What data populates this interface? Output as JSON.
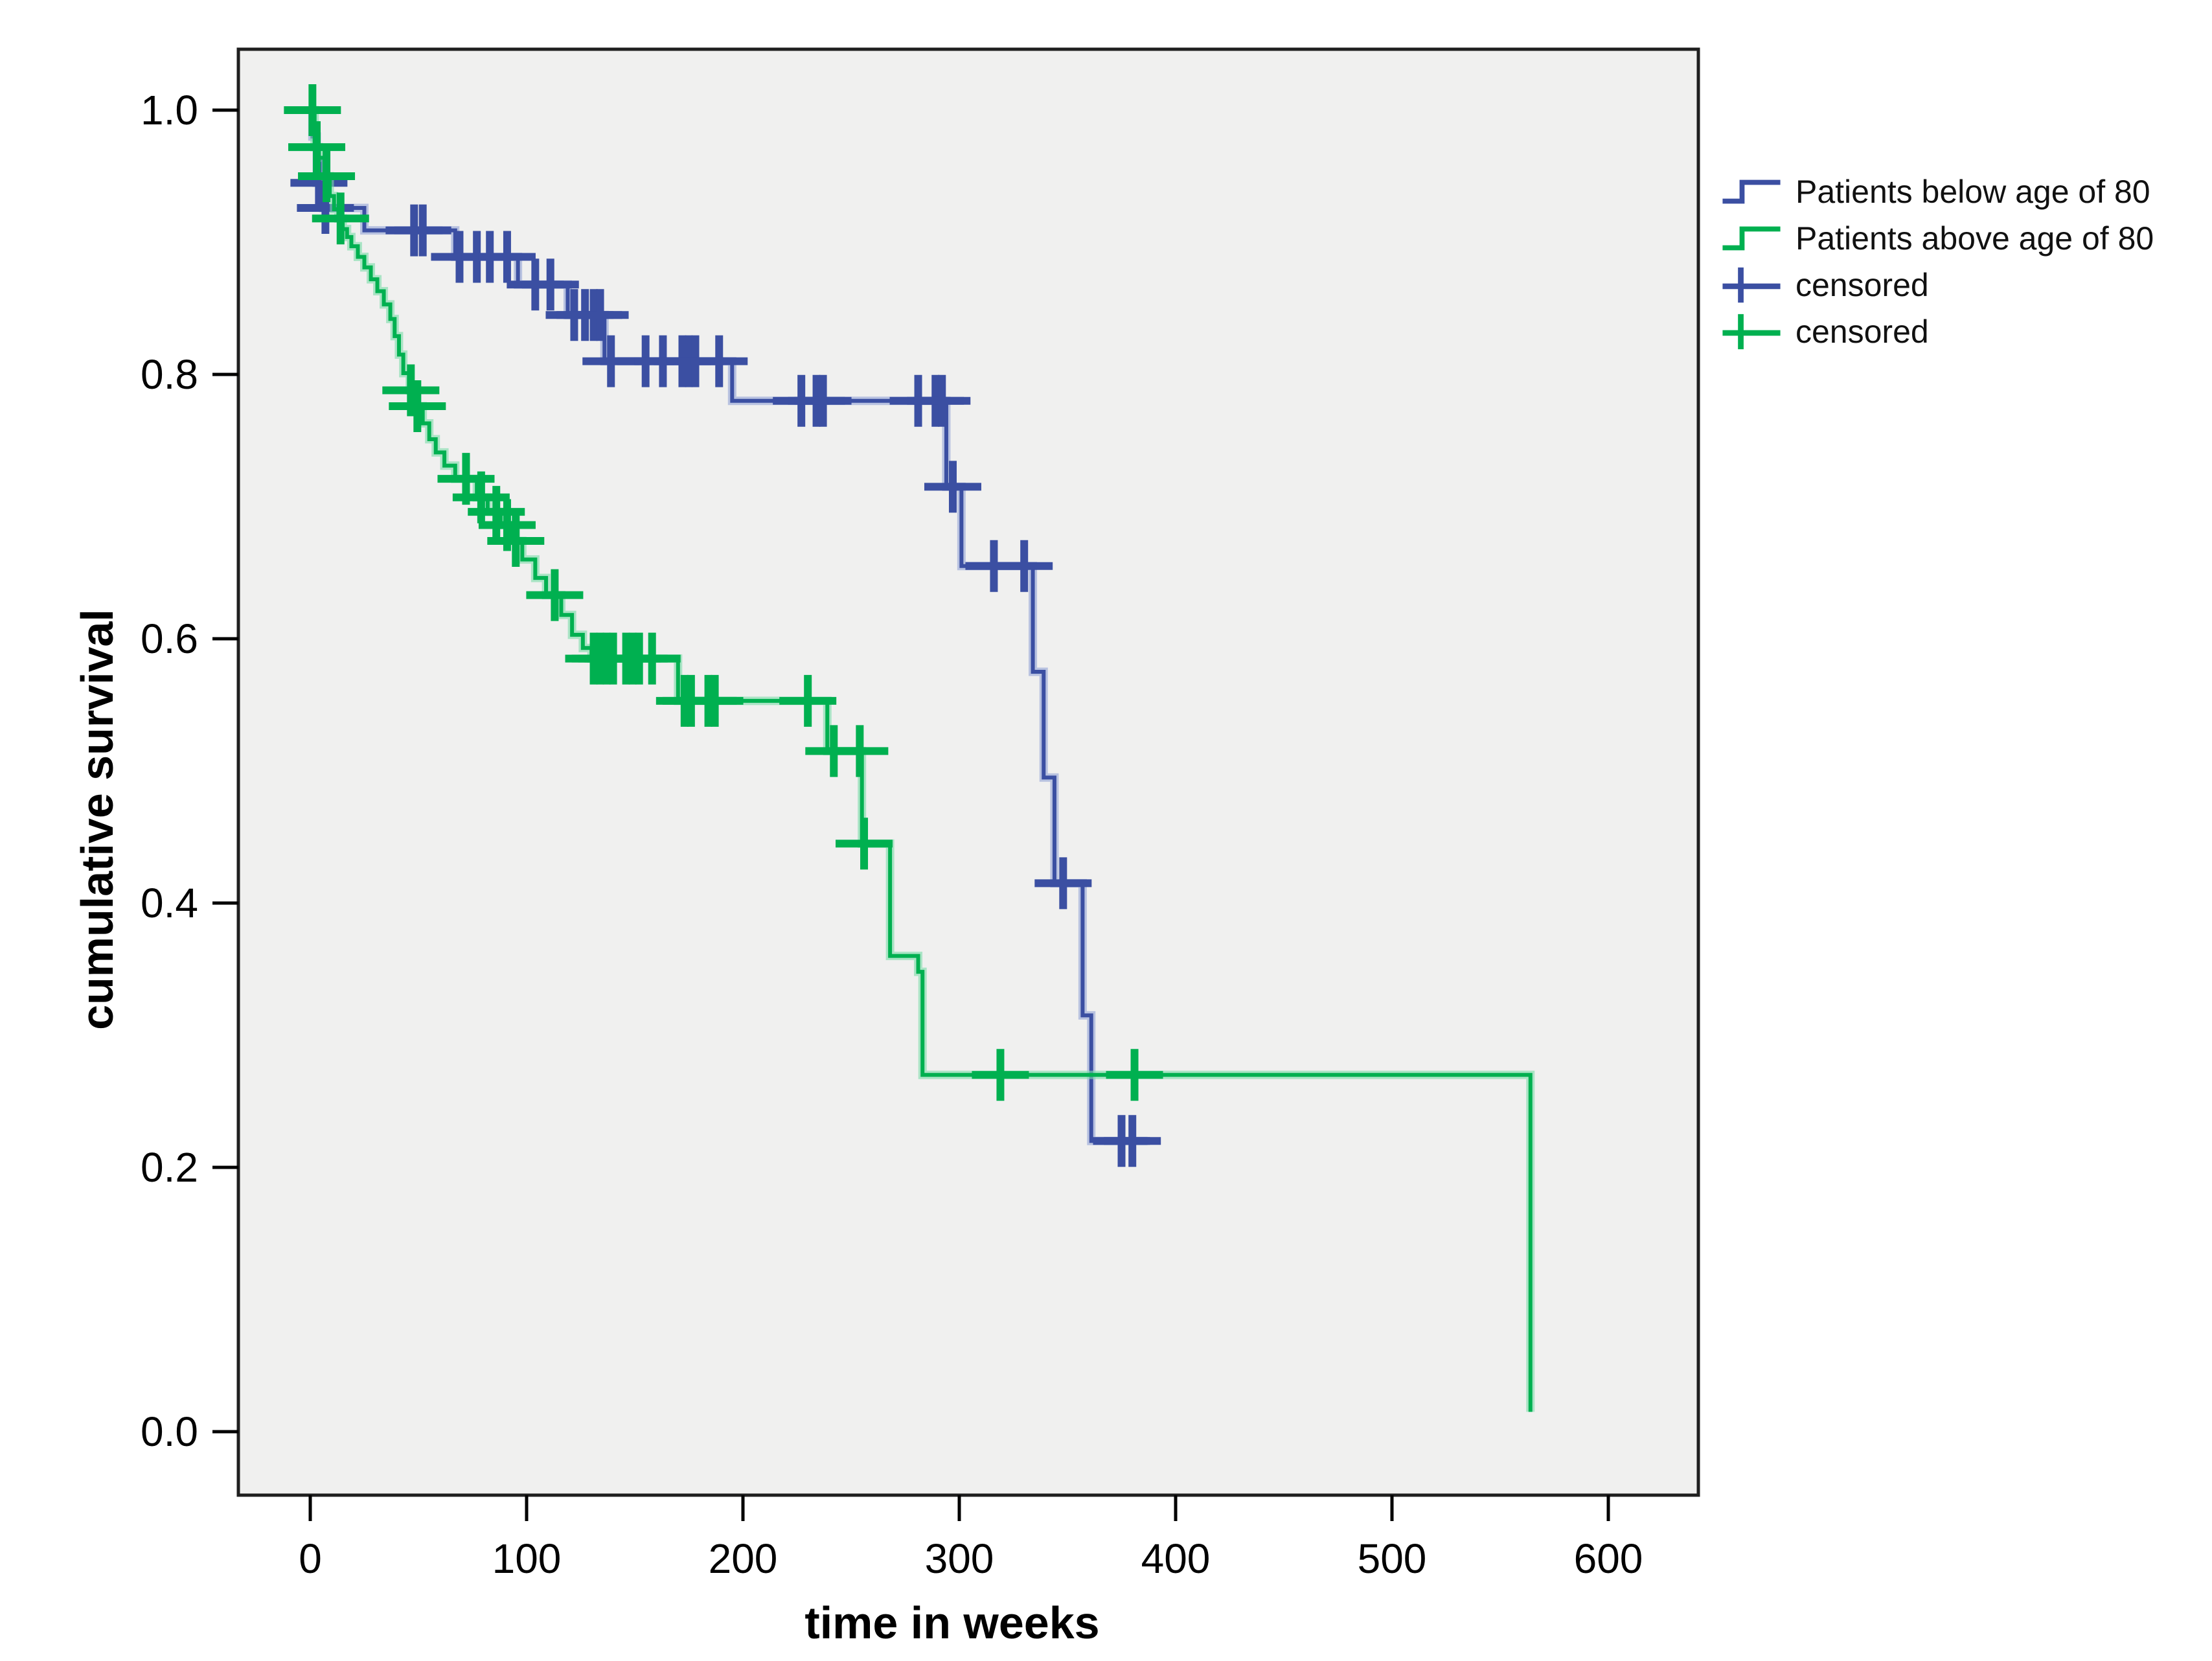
{
  "figure": {
    "y_axis": {
      "title": "cumulative survival",
      "tick_labels": [
        "1.0",
        "0.8",
        "0.6",
        "0.4",
        "0.2",
        "0.0"
      ],
      "tick_values": [
        1.0,
        0.8,
        0.6,
        0.4,
        0.2,
        0.0
      ]
    },
    "x_axis": {
      "title": "time in weeks",
      "tick_labels": [
        "0",
        "100",
        "200",
        "300",
        "400",
        "500",
        "600"
      ],
      "tick_values": [
        0,
        100,
        200,
        300,
        400,
        500,
        600
      ]
    },
    "legend": {
      "items": [
        {
          "label": "Patients below age of 80",
          "glyph": "step-line-icon",
          "color": "#3B4FA2"
        },
        {
          "label": "Patients above age of 80",
          "glyph": "step-line-icon",
          "color": "#00B050"
        },
        {
          "label": "censored",
          "glyph": "censor-plus-icon",
          "color": "#3B4FA2"
        },
        {
          "label": "censored",
          "glyph": "censor-plus-icon",
          "color": "#00B050"
        }
      ]
    },
    "colors": {
      "plot_background": "#F0F0EF",
      "frame": "#1F1F1F",
      "text": "#000000",
      "blue_series": "#3B4FA2",
      "blue_halo": "#93A4D6",
      "green_series": "#00B050",
      "green_halo": "#7CDCA8"
    }
  },
  "chart_data": {
    "type": "line",
    "subtype": "kaplan_meier_step_survival",
    "title": "",
    "xlabel": "time in weeks",
    "ylabel": "cumulative survival",
    "xlim": [
      0,
      600
    ],
    "ylim": [
      0.0,
      1.0
    ],
    "grid": false,
    "legend_position": "right-top",
    "series": [
      {
        "name": "Patients below age of 80",
        "color": "#3B4FA2",
        "halo": "#93A4D6",
        "steps": [
          [
            0,
            1.0
          ],
          [
            1,
            0.98
          ],
          [
            3,
            0.945
          ],
          [
            6,
            0.926
          ],
          [
            25,
            0.909
          ],
          [
            67,
            0.889
          ],
          [
            96,
            0.868
          ],
          [
            119,
            0.845
          ],
          [
            136,
            0.81
          ],
          [
            195,
            0.78
          ],
          [
            294,
            0.715
          ],
          [
            301,
            0.655
          ],
          [
            334,
            0.575
          ],
          [
            339,
            0.495
          ],
          [
            344,
            0.415
          ],
          [
            357,
            0.315
          ],
          [
            361,
            0.22
          ]
        ],
        "end": 387,
        "censored": [
          [
            4,
            0.945
          ],
          [
            7,
            0.926
          ],
          [
            48,
            0.909
          ],
          [
            52,
            0.909
          ],
          [
            69,
            0.889
          ],
          [
            77,
            0.889
          ],
          [
            83,
            0.889
          ],
          [
            91,
            0.889
          ],
          [
            104,
            0.868
          ],
          [
            111,
            0.868
          ],
          [
            122,
            0.845
          ],
          [
            127,
            0.845
          ],
          [
            131,
            0.845
          ],
          [
            134,
            0.845
          ],
          [
            139,
            0.81
          ],
          [
            155,
            0.81
          ],
          [
            163,
            0.81
          ],
          [
            172,
            0.81
          ],
          [
            175,
            0.81
          ],
          [
            178,
            0.81
          ],
          [
            189,
            0.81
          ],
          [
            227,
            0.78
          ],
          [
            234,
            0.78
          ],
          [
            237,
            0.78
          ],
          [
            281,
            0.78
          ],
          [
            289,
            0.78
          ],
          [
            292,
            0.78
          ],
          [
            297,
            0.715
          ],
          [
            316,
            0.655
          ],
          [
            330,
            0.655
          ],
          [
            348,
            0.415
          ],
          [
            375,
            0.22
          ],
          [
            380,
            0.22
          ]
        ]
      },
      {
        "name": "Patients above age of 80",
        "color": "#00B050",
        "halo": "#7CDCA8",
        "steps": [
          [
            0,
            1.0
          ],
          [
            2,
            0.972
          ],
          [
            4,
            0.964
          ],
          [
            7,
            0.95
          ],
          [
            9,
            0.935
          ],
          [
            11,
            0.925
          ],
          [
            13,
            0.918
          ],
          [
            15,
            0.91
          ],
          [
            17,
            0.904
          ],
          [
            19,
            0.897
          ],
          [
            22,
            0.889
          ],
          [
            25,
            0.881
          ],
          [
            28,
            0.872
          ],
          [
            31,
            0.863
          ],
          [
            34,
            0.853
          ],
          [
            37,
            0.842
          ],
          [
            39,
            0.829
          ],
          [
            41,
            0.815
          ],
          [
            43,
            0.801
          ],
          [
            46,
            0.788
          ],
          [
            49,
            0.776
          ],
          [
            52,
            0.763
          ],
          [
            55,
            0.751
          ],
          [
            58,
            0.741
          ],
          [
            62,
            0.731
          ],
          [
            67,
            0.721
          ],
          [
            77,
            0.707
          ],
          [
            82,
            0.696
          ],
          [
            88,
            0.686
          ],
          [
            93,
            0.674
          ],
          [
            98,
            0.66
          ],
          [
            104,
            0.646
          ],
          [
            109,
            0.633
          ],
          [
            116,
            0.618
          ],
          [
            121,
            0.603
          ],
          [
            126,
            0.593
          ],
          [
            130,
            0.585
          ],
          [
            170,
            0.553
          ],
          [
            239,
            0.515
          ],
          [
            255,
            0.445
          ],
          [
            268,
            0.36
          ],
          [
            281,
            0.348
          ],
          [
            283,
            0.27
          ],
          [
            564,
            0.015
          ]
        ],
        "end": 564,
        "censored": [
          [
            1,
            1.0
          ],
          [
            3,
            0.972
          ],
          [
            7.5,
            0.95
          ],
          [
            14,
            0.918
          ],
          [
            46.5,
            0.788
          ],
          [
            49.5,
            0.776
          ],
          [
            72,
            0.721
          ],
          [
            79,
            0.707
          ],
          [
            86,
            0.696
          ],
          [
            91,
            0.686
          ],
          [
            95,
            0.674
          ],
          [
            113,
            0.633
          ],
          [
            131,
            0.585
          ],
          [
            134,
            0.585
          ],
          [
            137,
            0.585
          ],
          [
            140,
            0.585
          ],
          [
            146,
            0.585
          ],
          [
            149,
            0.585
          ],
          [
            152,
            0.585
          ],
          [
            158,
            0.585
          ],
          [
            173,
            0.553
          ],
          [
            176,
            0.553
          ],
          [
            184,
            0.553
          ],
          [
            187,
            0.553
          ],
          [
            230,
            0.553
          ],
          [
            242,
            0.515
          ],
          [
            254,
            0.515
          ],
          [
            256,
            0.445
          ],
          [
            319,
            0.27
          ],
          [
            381,
            0.27
          ]
        ]
      }
    ]
  }
}
